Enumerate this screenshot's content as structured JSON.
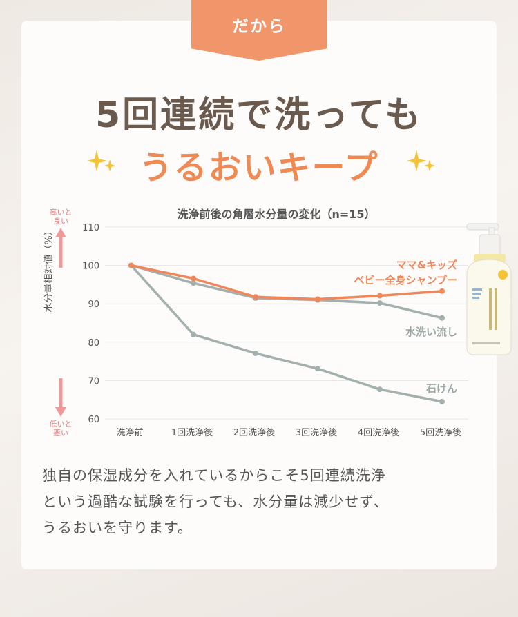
{
  "ribbon": {
    "label": "だから"
  },
  "headline": {
    "line1": "5回連続で洗っても",
    "line2": "うるおいキープ"
  },
  "side_labels": {
    "high": "高いと良い",
    "low": "低いと悪い"
  },
  "chart_data": {
    "type": "line",
    "title": "洗浄前後の角層水分量の変化（n=15）",
    "ylabel": "水分量相対値（%）",
    "xlabel": "",
    "categories": [
      "洗浄前",
      "1回洗浄後",
      "2回洗浄後",
      "3回洗浄後",
      "4回洗浄後",
      "5回洗浄後"
    ],
    "ylim": [
      60,
      110
    ],
    "yticks": [
      110,
      100,
      90,
      80,
      70,
      60
    ],
    "grid": true,
    "series": [
      {
        "name": "ママ&キッズ ベビー全身シャンプー",
        "color": "#f0875a",
        "values": [
          100,
          96.6,
          91.8,
          91.2,
          92.1,
          93.3
        ]
      },
      {
        "name": "水洗い流し",
        "color": "#a3b0ad",
        "values": [
          100,
          95.4,
          91.5,
          91.0,
          90.2,
          86.3
        ]
      },
      {
        "name": "石けん",
        "color": "#a3b0ad",
        "values": [
          100,
          82.0,
          77.1,
          73.1,
          67.7,
          64.5
        ]
      }
    ]
  },
  "product": {
    "icon": "shampoo-bottle-icon"
  },
  "body": {
    "line1": "独自の保湿成分を入れているからこそ5回連続洗浄",
    "line2": "という過酷な試験を行っても、水分量は減少せず、",
    "line3": "うるおいを守ります。"
  }
}
